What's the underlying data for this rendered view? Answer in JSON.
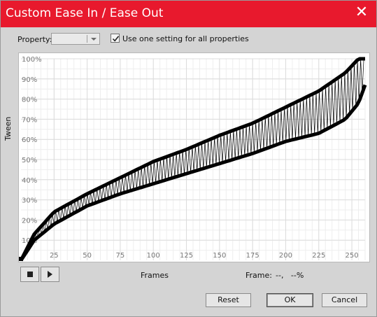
{
  "window": {
    "title": "Custom Ease In / Ease Out",
    "close_glyph": "✕"
  },
  "property": {
    "label": "Property:",
    "value": ""
  },
  "use_one_setting": {
    "label": "Use one setting for all properties",
    "checked": true
  },
  "graph": {
    "y_axis_label": "Tween",
    "y_ticks": [
      "10%",
      "20%",
      "30%",
      "40%",
      "50%",
      "60%",
      "70%",
      "80%",
      "90%",
      "100%"
    ],
    "x_ticks": [
      "25",
      "50",
      "75",
      "100",
      "125",
      "150",
      "175",
      "200",
      "225",
      "250"
    ]
  },
  "playback": {
    "stop_icon": "stop-icon",
    "play_icon": "play-icon"
  },
  "frames_label": "Frames",
  "frame_readout": {
    "label": "Frame:",
    "value": "--,   --%"
  },
  "buttons": {
    "reset": "Reset",
    "ok": "OK",
    "cancel": "Cancel"
  },
  "colors": {
    "titlebar": "#e8192d",
    "dialog_bg": "#d4d4d4",
    "curve": "#000000",
    "grid": "#e2e2e2"
  },
  "chart_data": {
    "type": "line",
    "xlabel": "Frames",
    "ylabel": "Tween",
    "xlim": [
      0,
      260
    ],
    "ylim": [
      0,
      100
    ],
    "grid": true,
    "series": [
      {
        "x": [
          0,
          10,
          25,
          50,
          75,
          100,
          125,
          150,
          175,
          200,
          225,
          245,
          255,
          260
        ],
        "y": [
          0,
          13,
          24,
          33,
          41,
          49,
          55,
          62,
          68,
          76,
          84,
          93,
          100,
          100
        ]
      },
      {
        "x": [
          0,
          10,
          25,
          50,
          75,
          100,
          125,
          150,
          175,
          200,
          225,
          245,
          255,
          260
        ],
        "y": [
          0,
          10,
          18,
          27,
          33,
          38,
          43,
          48,
          53,
          59,
          63,
          70,
          78,
          87
        ]
      }
    ]
  }
}
